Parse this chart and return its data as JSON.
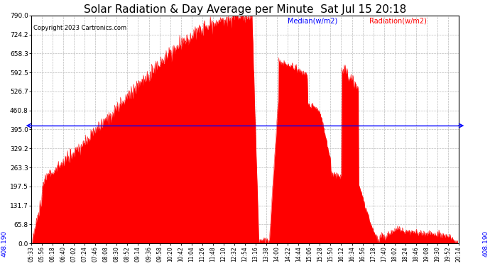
{
  "title": "Solar Radiation & Day Average per Minute  Sat Jul 15 20:18",
  "copyright": "Copyright 2023 Cartronics.com",
  "median_value": 408.19,
  "y_max": 790.0,
  "y_min": 0.0,
  "y_ticks": [
    0.0,
    65.8,
    131.7,
    197.5,
    263.3,
    329.2,
    395.0,
    460.8,
    526.7,
    592.5,
    658.3,
    724.2,
    790.0
  ],
  "median_label": "408.190",
  "legend_median_color": "#0000ff",
  "legend_radiation_color": "#ff0000",
  "fill_color": "#ff0000",
  "background_color": "#ffffff",
  "grid_color": "#bbbbbb",
  "title_fontsize": 11,
  "x_tick_labels": [
    "05:33",
    "05:56",
    "06:18",
    "06:40",
    "07:02",
    "07:24",
    "07:46",
    "08:08",
    "08:30",
    "08:52",
    "09:14",
    "09:36",
    "09:58",
    "10:20",
    "10:42",
    "11:04",
    "11:26",
    "11:48",
    "12:10",
    "12:32",
    "12:54",
    "13:16",
    "13:38",
    "14:00",
    "14:22",
    "14:44",
    "15:06",
    "15:28",
    "15:50",
    "16:12",
    "16:34",
    "16:56",
    "17:18",
    "17:40",
    "18:02",
    "18:24",
    "18:46",
    "19:08",
    "19:30",
    "19:52",
    "20:14"
  ]
}
